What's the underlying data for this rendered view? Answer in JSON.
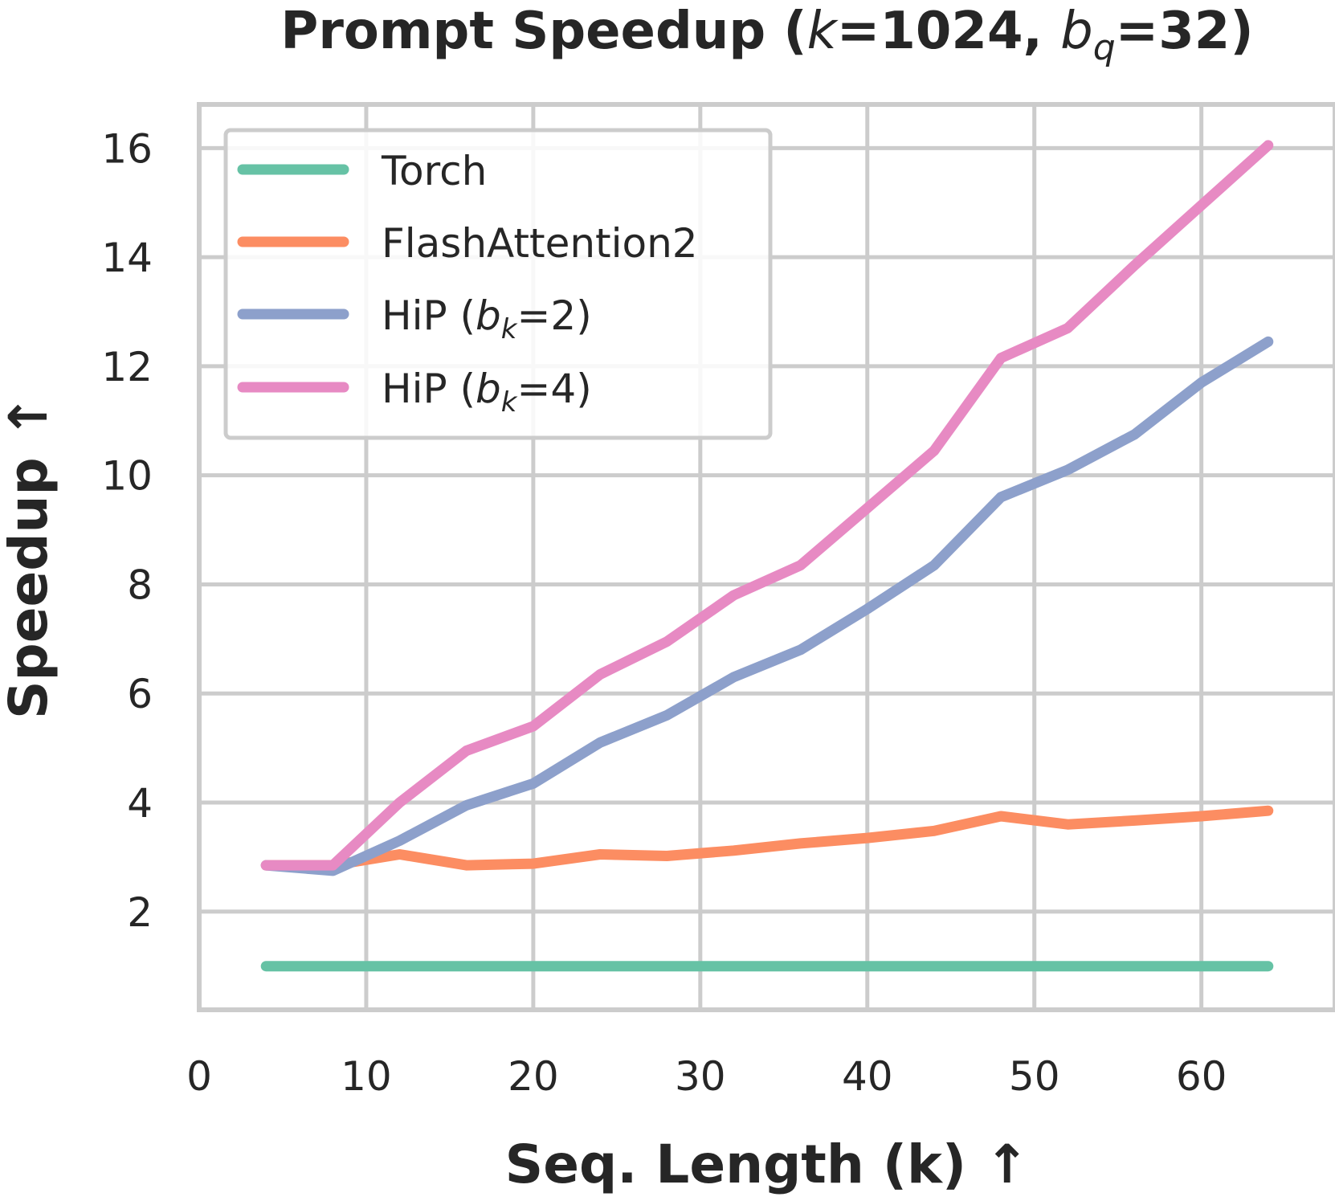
{
  "chart_data": {
    "type": "line",
    "title": {
      "main": "Prompt Speedup (",
      "k_symbol": "k",
      "k_value": "=1024, ",
      "b_symbol": "b",
      "b_sub": "q",
      "b_value": "=32)"
    },
    "xlabel": "Seq. Length (k) ↑",
    "ylabel": "Speedup ↑",
    "xlim": [
      0,
      68
    ],
    "ylim": [
      0.2,
      16.8
    ],
    "xticks": [
      0,
      10,
      20,
      30,
      40,
      50,
      60
    ],
    "yticks": [
      2,
      4,
      6,
      8,
      10,
      12,
      14,
      16
    ],
    "grid": true,
    "legend_position": "upper-left",
    "x": [
      4,
      8,
      12,
      16,
      20,
      24,
      28,
      32,
      36,
      40,
      44,
      48,
      52,
      56,
      60,
      64
    ],
    "series": [
      {
        "name": "Torch",
        "color": "#66c2a5",
        "values": [
          1.0,
          1.0,
          1.0,
          1.0,
          1.0,
          1.0,
          1.0,
          1.0,
          1.0,
          1.0,
          1.0,
          1.0,
          1.0,
          1.0,
          1.0,
          1.0
        ]
      },
      {
        "name": "FlashAttention2",
        "color": "#fc8d62",
        "values": [
          2.85,
          2.85,
          3.05,
          2.85,
          2.88,
          3.05,
          3.02,
          3.12,
          3.25,
          3.35,
          3.48,
          3.75,
          3.6,
          3.67,
          3.75,
          3.85
        ]
      },
      {
        "name": "HiP (b_k=2)",
        "label_prefix": "HiP (",
        "label_symbol": "b",
        "label_sub": "k",
        "label_suffix": "=2)",
        "color": "#8da0cb",
        "values": [
          2.85,
          2.75,
          3.3,
          3.95,
          4.35,
          5.1,
          5.6,
          6.3,
          6.8,
          7.55,
          8.35,
          9.6,
          10.1,
          10.75,
          11.7,
          12.45
        ]
      },
      {
        "name": "HiP (b_k=4)",
        "label_prefix": "HiP (",
        "label_symbol": "b",
        "label_sub": "k",
        "label_suffix": "=4)",
        "color": "#e78ac3",
        "values": [
          2.85,
          2.85,
          4.0,
          4.95,
          5.4,
          6.35,
          6.95,
          7.8,
          8.35,
          9.4,
          10.45,
          12.15,
          12.7,
          13.85,
          14.95,
          16.05
        ]
      }
    ]
  }
}
